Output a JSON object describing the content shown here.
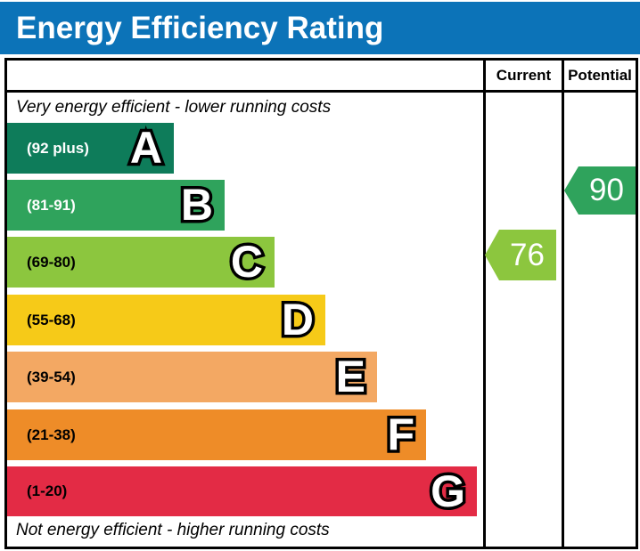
{
  "title": "Energy Efficiency Rating",
  "columns": {
    "current_label": "Current",
    "potential_label": "Potential"
  },
  "notes": {
    "top": "Very energy efficient - lower running costs",
    "bottom": "Not energy efficient - higher running costs"
  },
  "colors": {
    "header_blue": "#0c73b8",
    "border_black": "#000000",
    "band_a": "#0e7c5a",
    "band_b": "#2fa35c",
    "band_c": "#8cc63e",
    "band_d": "#f6ca18",
    "band_e": "#f3a863",
    "band_f": "#ee8c28",
    "band_g": "#e32b45"
  },
  "chart_data": {
    "type": "bar",
    "title": "Energy Efficiency Rating",
    "bands": [
      {
        "letter": "A",
        "range_label": "(92 plus)",
        "range_min": 92,
        "range_max": 100,
        "color": "#0e7c5a"
      },
      {
        "letter": "B",
        "range_label": "(81-91)",
        "range_min": 81,
        "range_max": 91,
        "color": "#2fa35c"
      },
      {
        "letter": "C",
        "range_label": "(69-80)",
        "range_min": 69,
        "range_max": 80,
        "color": "#8cc63e"
      },
      {
        "letter": "D",
        "range_label": "(55-68)",
        "range_min": 55,
        "range_max": 68,
        "color": "#f6ca18"
      },
      {
        "letter": "E",
        "range_label": "(39-54)",
        "range_min": 39,
        "range_max": 54,
        "color": "#f3a863"
      },
      {
        "letter": "F",
        "range_label": "(21-38)",
        "range_min": 21,
        "range_max": 38,
        "color": "#ee8c28"
      },
      {
        "letter": "G",
        "range_label": "(1-20)",
        "range_min": 1,
        "range_max": 20,
        "color": "#e32b45"
      }
    ],
    "current": {
      "value": 76,
      "band": "C",
      "color": "#8cc63e"
    },
    "potential": {
      "value": 90,
      "band": "B",
      "color": "#2fa35c"
    }
  }
}
